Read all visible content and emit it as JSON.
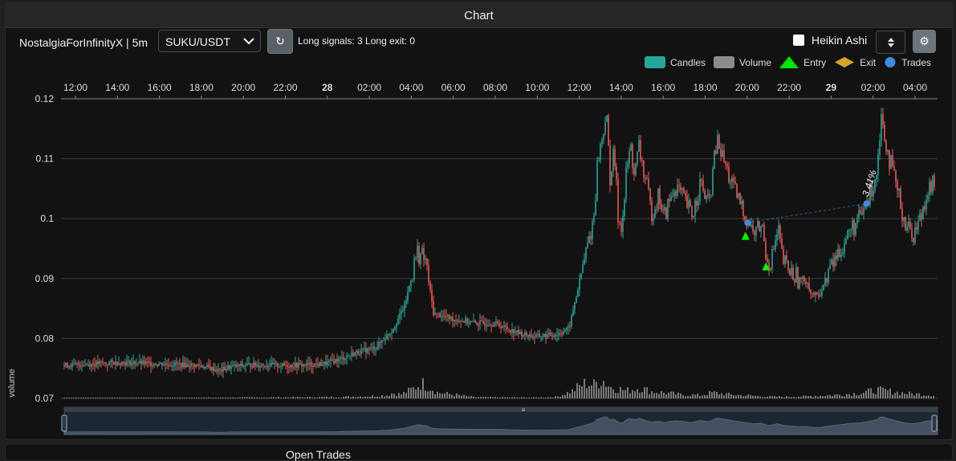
{
  "panel": {
    "title": "Chart"
  },
  "toolbar": {
    "strategy_label": "NostalgiaForInfinityX | 5m",
    "pair_value": "SUKU/USDT",
    "refresh_glyph": "↻",
    "signals_text": "Long signals: 3   Long exit: 0",
    "heikin_label": "Heikin Ashi",
    "settings_glyph": "⚙"
  },
  "legend": {
    "candles": "Candles",
    "volume": "Volume",
    "entry": "Entry",
    "exit": "Exit",
    "trades": "Trades"
  },
  "colors": {
    "up": "#26a69a",
    "down": "#ef5350",
    "volume": "#8c8c8c",
    "entry": "#00ff00",
    "exit": "#d4a52a",
    "trades": "#3c8ce6",
    "grid": "#3a3a3a"
  },
  "bottom": {
    "title": "Open Trades"
  },
  "chart_data": {
    "type": "candlestick",
    "ylabel": "volume",
    "ylim": [
      0.07,
      0.12
    ],
    "yticks": [
      "0.12",
      "0.11",
      "0.1",
      "0.09",
      "0.08",
      "0.07"
    ],
    "xticks": [
      "12:00",
      "14:00",
      "16:00",
      "18:00",
      "20:00",
      "22:00",
      "28",
      "02:00",
      "04:00",
      "06:00",
      "08:00",
      "10:00",
      "12:00",
      "14:00",
      "16:00",
      "18:00",
      "20:00",
      "22:00",
      "29",
      "02:00",
      "04:00"
    ],
    "xticks_bold": [
      "28",
      "29"
    ],
    "trade_label": "3.41%",
    "path": [
      [
        0,
        0.0755
      ],
      [
        8,
        0.0758
      ],
      [
        14,
        0.076
      ],
      [
        22,
        0.0758
      ],
      [
        33,
        0.0755
      ],
      [
        38,
        0.0746
      ],
      [
        40,
        0.0752
      ],
      [
        45,
        0.0756
      ],
      [
        55,
        0.0755
      ],
      [
        63,
        0.0757
      ],
      [
        67,
        0.0765
      ],
      [
        71,
        0.0776
      ],
      [
        76,
        0.0785
      ],
      [
        80,
        0.0815
      ],
      [
        83,
        0.0855
      ],
      [
        86,
        0.0945
      ],
      [
        88,
        0.093
      ],
      [
        90,
        0.0842
      ],
      [
        95,
        0.0832
      ],
      [
        100,
        0.0826
      ],
      [
        105,
        0.0825
      ],
      [
        111,
        0.0808
      ],
      [
        115,
        0.0803
      ],
      [
        120,
        0.0807
      ],
      [
        123,
        0.0817
      ],
      [
        127,
        0.094
      ],
      [
        129,
        0.1
      ],
      [
        130,
        0.11
      ],
      [
        131,
        0.113
      ],
      [
        132,
        0.118
      ],
      [
        133,
        0.107
      ],
      [
        134,
        0.111
      ],
      [
        135,
        0.1
      ],
      [
        136,
        0.099
      ],
      [
        137,
        0.108
      ],
      [
        138,
        0.112
      ],
      [
        139,
        0.107
      ],
      [
        140,
        0.112
      ],
      [
        142,
        0.105
      ],
      [
        143,
        0.101
      ],
      [
        145,
        0.104
      ],
      [
        146,
        0.1
      ],
      [
        147,
        0.102
      ],
      [
        149,
        0.1055
      ],
      [
        151,
        0.103
      ],
      [
        153,
        0.1005
      ],
      [
        155,
        0.106
      ],
      [
        157,
        0.102
      ],
      [
        159,
        0.113
      ],
      [
        161,
        0.109
      ],
      [
        163,
        0.105
      ],
      [
        165,
        0.102
      ],
      [
        167,
        0.099
      ],
      [
        168,
        0.0975
      ],
      [
        170,
        0.099
      ],
      [
        171,
        0.094
      ],
      [
        172,
        0.0925
      ],
      [
        174,
        0.098
      ],
      [
        175,
        0.093
      ],
      [
        177,
        0.091
      ],
      [
        179,
        0.09
      ],
      [
        181,
        0.0895
      ],
      [
        182,
        0.0875
      ],
      [
        184,
        0.087
      ],
      [
        186,
        0.091
      ],
      [
        188,
        0.0935
      ],
      [
        190,
        0.096
      ],
      [
        192,
        0.0985
      ],
      [
        194,
        0.1
      ],
      [
        196,
        0.1035
      ],
      [
        198,
        0.108
      ],
      [
        199,
        0.1175
      ],
      [
        201,
        0.11
      ],
      [
        203,
        0.1045
      ],
      [
        205,
        0.099
      ],
      [
        207,
        0.0975
      ],
      [
        209,
        0.101
      ],
      [
        210,
        0.1045
      ],
      [
        212,
        0.106
      ]
    ],
    "volume": [
      [
        0,
        1
      ],
      [
        40,
        2
      ],
      [
        62,
        3
      ],
      [
        68,
        4
      ],
      [
        72,
        5
      ],
      [
        76,
        6
      ],
      [
        79,
        9
      ],
      [
        80,
        14
      ],
      [
        82,
        10
      ],
      [
        85,
        25
      ],
      [
        87,
        40
      ],
      [
        89,
        30
      ],
      [
        91,
        15
      ],
      [
        100,
        3
      ],
      [
        115,
        2
      ],
      [
        120,
        4
      ],
      [
        124,
        20
      ],
      [
        125,
        28
      ],
      [
        127,
        40
      ],
      [
        129,
        35
      ],
      [
        131,
        50
      ],
      [
        133,
        30
      ],
      [
        135,
        25
      ],
      [
        137,
        20
      ],
      [
        140,
        28
      ],
      [
        143,
        18
      ],
      [
        146,
        15
      ],
      [
        150,
        10
      ],
      [
        155,
        8
      ],
      [
        158,
        15
      ],
      [
        162,
        10
      ],
      [
        166,
        8
      ],
      [
        170,
        5
      ],
      [
        175,
        4
      ],
      [
        180,
        5
      ],
      [
        186,
        8
      ],
      [
        190,
        10
      ],
      [
        194,
        14
      ],
      [
        196,
        18
      ],
      [
        198,
        22
      ],
      [
        200,
        20
      ],
      [
        203,
        16
      ],
      [
        206,
        12
      ],
      [
        210,
        10
      ],
      [
        212,
        8
      ]
    ],
    "entries": [
      [
        166,
        0.097
      ],
      [
        171,
        0.0919
      ]
    ],
    "trades": [
      [
        166.5,
        0.0993
      ],
      [
        195.5,
        0.1025
      ]
    ]
  }
}
